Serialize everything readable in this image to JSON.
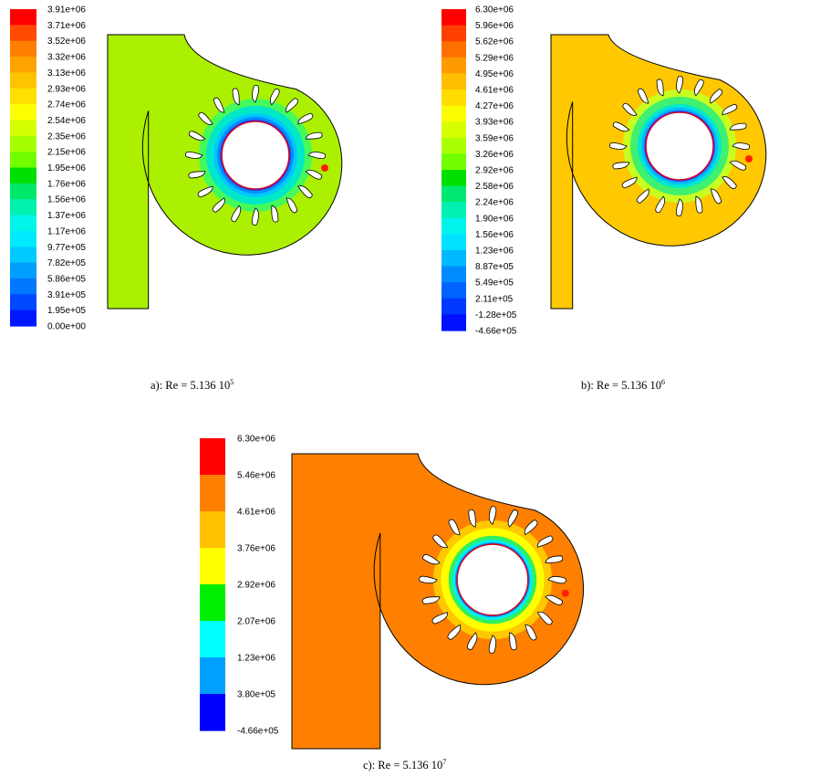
{
  "panels": [
    {
      "id": "a",
      "caption": "a): Re = 5.136 10",
      "caption_exp": "5",
      "colorbar": {
        "labels": [
          "3.91e+06",
          "3.71e+06",
          "3.52e+06",
          "3.32e+06",
          "3.13e+06",
          "2.93e+06",
          "2.74e+06",
          "2.54e+06",
          "2.35e+06",
          "2.15e+06",
          "1.95e+06",
          "1.76e+06",
          "1.56e+06",
          "1.37e+06",
          "1.17e+06",
          "9.77e+05",
          "7.82e+05",
          "5.86e+05",
          "3.91e+05",
          "1.95e+05",
          "0.00e+00"
        ],
        "colors": [
          "#ff0000",
          "#ff4a00",
          "#ff8000",
          "#ffa300",
          "#ffc400",
          "#ffe100",
          "#fdff00",
          "#d4ff00",
          "#a6ff00",
          "#71ff00",
          "#00e000",
          "#00e86a",
          "#00f0ae",
          "#00f6e8",
          "#00eaff",
          "#00caff",
          "#009fff",
          "#0077ff",
          "#0048ff",
          "#0018ff"
        ]
      },
      "field": {
        "casing": "#aaf000",
        "ring": [
          "#45fa5a",
          "#00e8c8",
          "#00c8ff",
          "#0090ff",
          "#2040ff"
        ],
        "hub_edge": "#d00020",
        "hotspot": "#ff2000"
      }
    },
    {
      "id": "b",
      "caption": "b): Re = 5.136 10",
      "caption_exp": "6",
      "colorbar": {
        "labels": [
          "6.30e+06",
          "5.96e+06",
          "5.62e+06",
          "5.29e+06",
          "4.95e+06",
          "4.61e+06",
          "4.27e+06",
          "3.93e+06",
          "3.59e+06",
          "3.26e+06",
          "2.92e+06",
          "2.58e+06",
          "2.24e+06",
          "1.90e+06",
          "1.56e+06",
          "1.23e+06",
          "8.87e+05",
          "5.49e+05",
          "2.11e+05",
          "-1.28e+05",
          "-4.66e+05"
        ],
        "colors": [
          "#ff0000",
          "#ff4000",
          "#ff7000",
          "#ff9a00",
          "#ffbe00",
          "#ffdc00",
          "#fcfc00",
          "#d8ff00",
          "#aaff00",
          "#72ff00",
          "#00e000",
          "#00e870",
          "#00f0b4",
          "#00f4ec",
          "#00e0ff",
          "#00b8ff",
          "#008cff",
          "#0062ff",
          "#0038ff",
          "#0010ff"
        ]
      },
      "field": {
        "casing": "#ffc800",
        "ring": [
          "#c8ff20",
          "#40f070",
          "#00e8d0",
          "#00b8ff",
          "#2050ff"
        ],
        "hub_edge": "#d00020",
        "hotspot": "#ff2000"
      }
    },
    {
      "id": "c",
      "caption": "c): Re = 5.136 10",
      "caption_exp": "7",
      "colorbar": {
        "labels": [
          "6.30e+06",
          "5.46e+06",
          "4.61e+06",
          "3.76e+06",
          "2.92e+06",
          "2.07e+06",
          "1.23e+06",
          "3.80e+05",
          "-4.66e+05"
        ],
        "colors": [
          "#ff0000",
          "#ff8000",
          "#ffc000",
          "#ffff00",
          "#00ee00",
          "#00ffff",
          "#00a0ff",
          "#0000ff"
        ]
      },
      "field": {
        "casing": "#ff8000",
        "ring": [
          "#ffc800",
          "#ffff00",
          "#30f060",
          "#00f0f0",
          "#0090ff"
        ],
        "hub_edge": "#d00020",
        "hotspot": "#ff2000"
      }
    }
  ]
}
